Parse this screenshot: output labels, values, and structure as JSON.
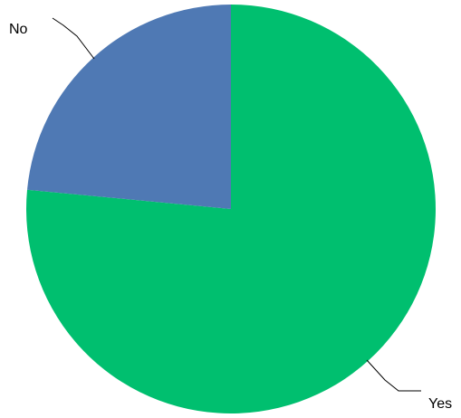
{
  "chart_data": {
    "type": "pie",
    "categories": [
      "Yes",
      "No"
    ],
    "values": [
      76.5,
      23.5
    ],
    "colors": [
      "#00BF6F",
      "#4F79B4"
    ],
    "title": "",
    "legend": "none",
    "labels_position": "outside-with-leader-lines",
    "start_angle": "12 o'clock",
    "direction": "clockwise"
  }
}
